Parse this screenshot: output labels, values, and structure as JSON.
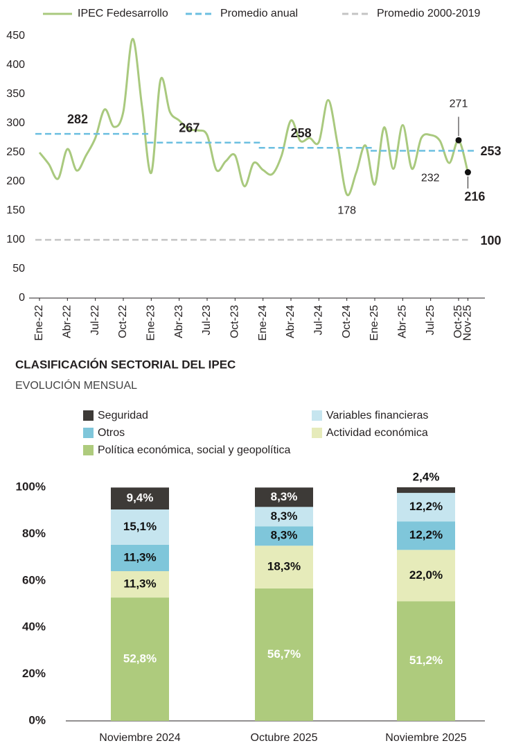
{
  "chart_data": [
    {
      "type": "line",
      "legend": "top",
      "grid": false,
      "categories": [
        "Ene-22",
        null,
        null,
        "Abr-22",
        null,
        null,
        "Jul-22",
        null,
        null,
        "Oct-22",
        null,
        null,
        "Ene-23",
        null,
        null,
        "Abr-23",
        null,
        null,
        "Jul-23",
        null,
        null,
        "Oct-23",
        null,
        null,
        "Ene-24",
        null,
        null,
        "Abr-24",
        null,
        null,
        "Jul-24",
        null,
        null,
        "Oct-24",
        null,
        null,
        "Ene-25",
        null,
        null,
        "Abr-25",
        null,
        null,
        "Jul-25",
        null,
        null,
        "Oct-25",
        "Nov-25"
      ],
      "series": [
        {
          "name": "IPEC Fedesarrollo",
          "color": "#a9c97e",
          "dash": false,
          "values": [
            250,
            230,
            205,
            256,
            219,
            245,
            275,
            324,
            294,
            320,
            445,
            330,
            215,
            375,
            320,
            305,
            290,
            288,
            280,
            220,
            235,
            245,
            192,
            232,
            220,
            213,
            245,
            305,
            270,
            275,
            268,
            340,
            265,
            178,
            215,
            262,
            195,
            293,
            222,
            297,
            222,
            275,
            280,
            270,
            232,
            271,
            216
          ]
        },
        {
          "name": "Promedio anual",
          "color": "#6bbfe0",
          "dash": true,
          "values": [
            282,
            282,
            282,
            282,
            282,
            282,
            282,
            282,
            282,
            282,
            282,
            282,
            267,
            267,
            267,
            267,
            267,
            267,
            267,
            267,
            267,
            267,
            267,
            267,
            258,
            258,
            258,
            258,
            258,
            258,
            258,
            258,
            258,
            258,
            258,
            258,
            253,
            253,
            253,
            253,
            253,
            253,
            253,
            253,
            253,
            253,
            253
          ]
        },
        {
          "name": "Promedio 2000-2019",
          "color": "#c4c4c4",
          "dash": true,
          "values": [
            100,
            100,
            100,
            100,
            100,
            100,
            100,
            100,
            100,
            100,
            100,
            100,
            100,
            100,
            100,
            100,
            100,
            100,
            100,
            100,
            100,
            100,
            100,
            100,
            100,
            100,
            100,
            100,
            100,
            100,
            100,
            100,
            100,
            100,
            100,
            100,
            100,
            100,
            100,
            100,
            100,
            100,
            100,
            100,
            100,
            100,
            100
          ]
        }
      ],
      "ylim": [
        0,
        450
      ],
      "yticks": [
        0,
        50,
        100,
        150,
        200,
        250,
        300,
        350,
        400,
        450
      ]
    },
    {
      "type": "stacked_bar",
      "title": "CLASIFICACIÓN SECTORIAL DEL IPEC",
      "subtitle": "EVOLUCIÓN MENSUAL",
      "legend": "top",
      "categories": [
        "Noviembre 2024",
        "Octubre 2025",
        "Noviembre 2025"
      ],
      "series": [
        {
          "name": "Política económica, social y geopolítica",
          "color": "#aecb7d",
          "values": [
            52.8,
            56.7,
            51.2
          ],
          "value_labels": [
            "52,8%",
            "56,7%",
            "51,2%"
          ]
        },
        {
          "name": "Actividad económica",
          "color": "#e6ebba",
          "values": [
            11.3,
            18.3,
            22.0
          ],
          "value_labels": [
            "11,3%",
            "18,3%",
            "22,0%"
          ]
        },
        {
          "name": "Otros",
          "color": "#7fc6da",
          "values": [
            11.3,
            8.3,
            12.2
          ],
          "value_labels": [
            "11,3%",
            "8,3%",
            "12,2%"
          ]
        },
        {
          "name": "Variables financieras",
          "color": "#c6e5ef",
          "values": [
            15.1,
            8.3,
            12.2
          ],
          "value_labels": [
            "15,1%",
            "8,3%",
            "12,2%"
          ]
        },
        {
          "name": "Seguridad",
          "color": "#3d3a37",
          "values": [
            9.4,
            8.3,
            2.4
          ],
          "value_labels": [
            "9,4%",
            "8,3%",
            "2,4%"
          ]
        }
      ],
      "ylim": [
        0,
        100
      ],
      "yticks": [
        {
          "value": 0,
          "label": "0%"
        },
        {
          "value": 20,
          "label": "20%"
        },
        {
          "value": 40,
          "label": "40%"
        },
        {
          "value": 60,
          "label": "60%"
        },
        {
          "value": 80,
          "label": "80%"
        },
        {
          "value": 100,
          "label": "100%"
        }
      ]
    }
  ]
}
